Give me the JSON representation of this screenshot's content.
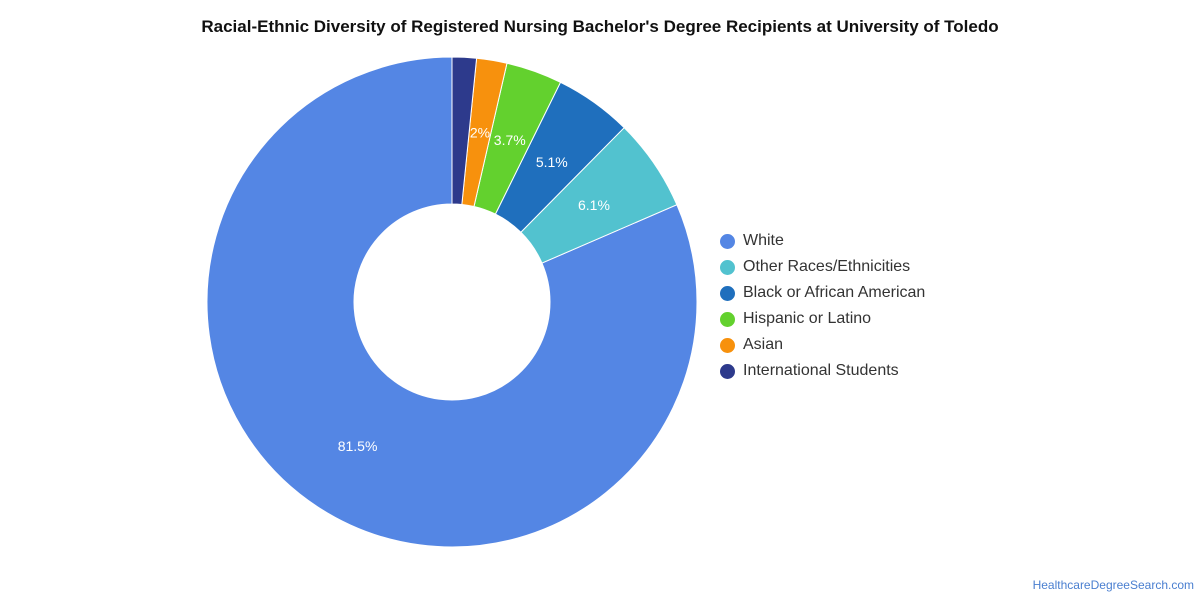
{
  "chart_data": {
    "type": "pie",
    "variant": "donut",
    "title": "Racial-Ethnic Diversity of Registered Nursing Bachelor's Degree Recipients at University of Toledo",
    "legend_position": "right",
    "slices": [
      {
        "label": "White",
        "value": 81.5,
        "display": "81.5%",
        "color": "#5486e4"
      },
      {
        "label": "Other Races/Ethnicities",
        "value": 6.1,
        "display": "6.1%",
        "color": "#52c2cf"
      },
      {
        "label": "Black or African American",
        "value": 5.1,
        "display": "5.1%",
        "color": "#1f6fbd"
      },
      {
        "label": "Hispanic or Latino",
        "value": 3.7,
        "display": "3.7%",
        "color": "#63d12e"
      },
      {
        "label": "Asian",
        "value": 2.0,
        "display": "2%",
        "color": "#f7910d"
      },
      {
        "label": "International Students",
        "value": 1.6,
        "display": "",
        "color": "#2d3a8c"
      }
    ]
  },
  "watermark": "HealthcareDegreeSearch.com"
}
